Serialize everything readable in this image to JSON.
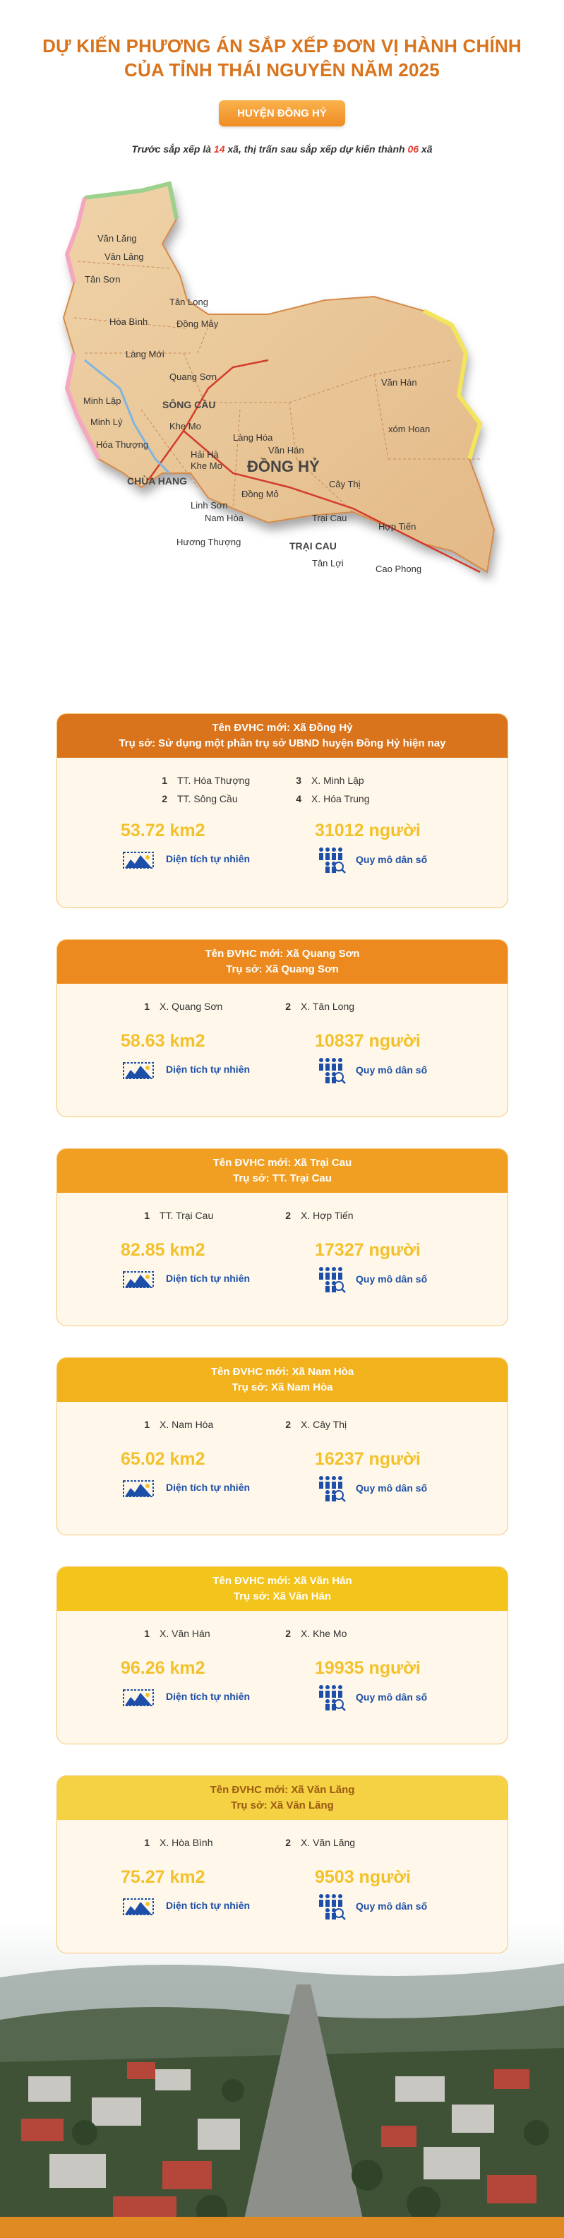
{
  "header": {
    "title_line1": "DỰ KIẾN PHƯƠNG ÁN SẮP XẾP ĐƠN VỊ HÀNH CHÍNH",
    "title_line2": "CỦA TỈNH THÁI NGUYÊN NĂM 2025",
    "district": "HUYỆN ĐỒNG HỶ",
    "intro_prefix": "Trước sắp xếp là ",
    "intro_before_count": "14",
    "intro_middle": " xã, thị trấn sau sắp xếp dự kiến thành ",
    "intro_after_count": "06",
    "intro_suffix": " xã"
  },
  "map": {
    "labels": {
      "van_lang_top": "Văn Lăng",
      "van_lang": "Văn Lăng",
      "tan_son": "Tân Sơn",
      "tan_long": "Tân Long",
      "hoa_binh": "Hòa Bình",
      "dong_may": "Đồng Mây",
      "lang_moi": "Làng Mới",
      "quang_son": "Quang Sơn",
      "van_han_right": "Văn Hán",
      "minh_lap": "Minh Lập",
      "song_cau": "SÔNG CẦU",
      "xom_hoan": "xóm Hoan",
      "minh_ly": "Minh Lý",
      "hoa_thuong": "Hóa Thượng",
      "khe_mo": "Khe Mo",
      "lang_hoa": "Làng Hóa",
      "van_han": "Văn Hán",
      "dong_hy": "ĐỒNG HỶ",
      "hai_ha": "Hải Hà",
      "khe_mo2": "Khe Mo",
      "chua_hang": "CHÙA HANG",
      "dong_mo": "Đồng Mỏ",
      "cay_thi": "Cây Thị",
      "linh_son": "Linh Sơn",
      "nam_hoa": "Nam Hòa",
      "huong_thuong": "Hương Thượng",
      "trai_cau": "Trại Cau",
      "hop_tien": "Hợp Tiến",
      "trai_cau_town": "TRẠI CAU",
      "tan_loi": "Tân Lợi",
      "cao_phong": "Cao Phong"
    },
    "colors": {
      "land": "#e9c79a",
      "border": "#d48a4a",
      "road": "#d23b2a"
    }
  },
  "units": [
    {
      "header_line1": "Tên ĐVHC mới: Xã Đồng Hỷ",
      "header_line2": "Trụ sở: Sử dụng một phần trụ sở UBND huyện Đồng Hỷ hiện nay",
      "color": "#d9731c",
      "members": [
        {
          "num": "1",
          "name": "TT. Hóa Thượng"
        },
        {
          "num": "3",
          "name": "X. Minh Lập"
        },
        {
          "num": "2",
          "name": "TT. Sông Cầu"
        },
        {
          "num": "4",
          "name": "X. Hóa Trung"
        }
      ],
      "area": "53.72 km2",
      "area_label": "Diện tích tự nhiên",
      "population": "31012 người",
      "population_label": "Quy mô dân số"
    },
    {
      "header_line1": "Tên ĐVHC mới: Xã Quang Sơn",
      "header_line2": "Trụ sở: Xã Quang Sơn",
      "color": "#ec8a1f",
      "members": [
        {
          "num": "1",
          "name": "X. Quang Sơn"
        },
        {
          "num": "2",
          "name": "X. Tân Long"
        }
      ],
      "area": "58.63 km2",
      "area_label": "Diện tích tự nhiên",
      "population": "10837 người",
      "population_label": "Quy mô dân số"
    },
    {
      "header_line1": "Tên ĐVHC mới: Xã Trại Cau",
      "header_line2": "Trụ sở: TT. Trại Cau",
      "color": "#f19f22",
      "members": [
        {
          "num": "1",
          "name": "TT. Trại Cau"
        },
        {
          "num": "2",
          "name": "X. Hợp Tiến"
        }
      ],
      "area": "82.85 km2",
      "area_label": "Diện tích tự nhiên",
      "population": "17327 người",
      "population_label": "Quy mô dân số"
    },
    {
      "header_line1": "Tên ĐVHC mới: Xã Nam Hòa",
      "header_line2": "Trụ sở: Xã Nam Hòa",
      "color": "#f2b21e",
      "members": [
        {
          "num": "1",
          "name": "X. Nam Hòa"
        },
        {
          "num": "2",
          "name": "X. Cây Thị"
        }
      ],
      "area": "65.02 km2",
      "area_label": "Diện tích tự nhiên",
      "population": "16237 người",
      "population_label": "Quy mô dân số"
    },
    {
      "header_line1": "Tên ĐVHC mới: Xã Văn Hán",
      "header_line2": "Trụ sở: Xã Văn Hán",
      "color": "#f3c41c",
      "members": [
        {
          "num": "1",
          "name": "X. Văn Hán"
        },
        {
          "num": "2",
          "name": "X. Khe Mo"
        }
      ],
      "area": "96.26 km2",
      "area_label": "Diện tích tự nhiên",
      "population": "19935 người",
      "population_label": "Quy mô dân số"
    },
    {
      "header_line1": "Tên ĐVHC mới: Xã Văn Lăng",
      "header_line2": "Trụ sở: Xã Văn Lăng",
      "color": "#f5d144",
      "text_color": "#9a5a12",
      "members": [
        {
          "num": "1",
          "name": "X. Hòa Bình"
        },
        {
          "num": "2",
          "name": "X. Văn Lăng"
        }
      ],
      "area": "75.27 km2",
      "area_label": "Diện tích tự nhiên",
      "population": "9503 người",
      "population_label": "Quy mô dân số"
    }
  ]
}
